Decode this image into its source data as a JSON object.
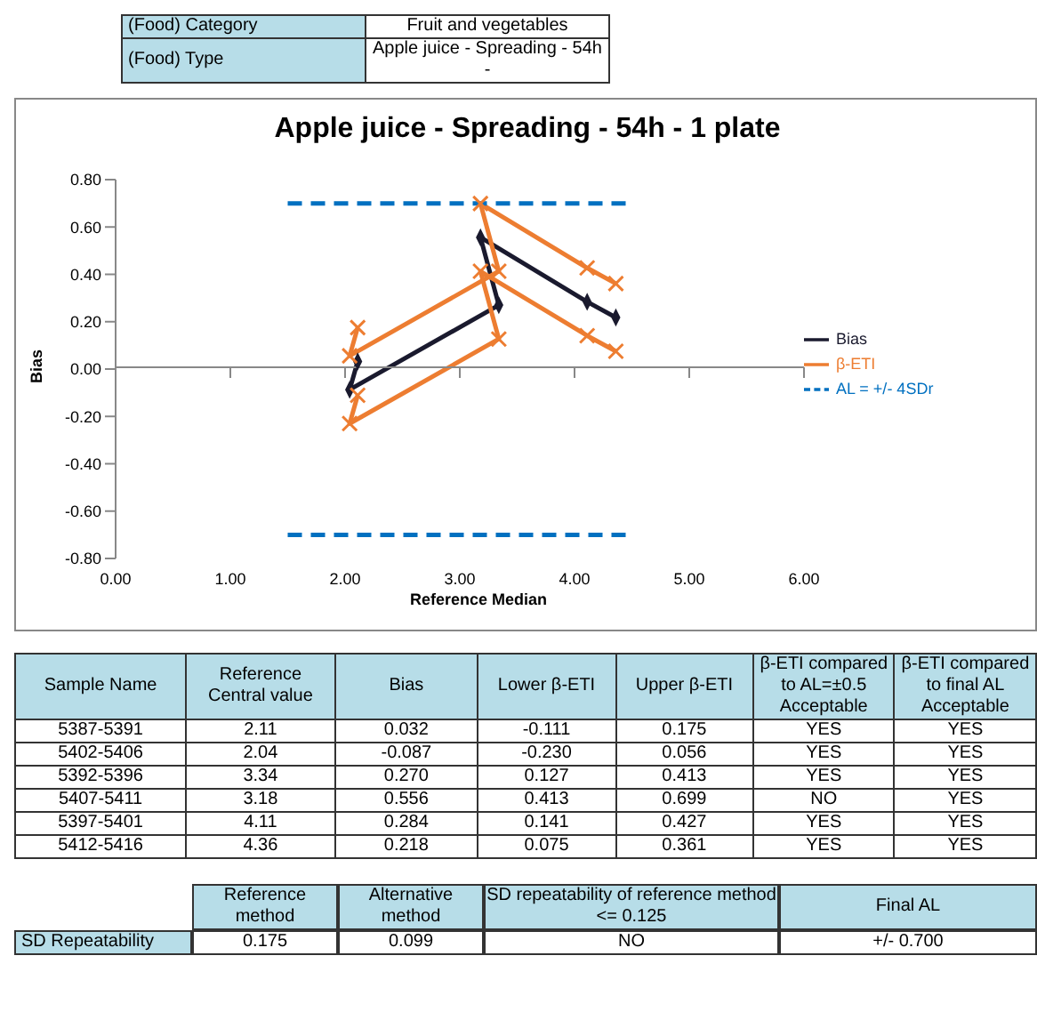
{
  "chart_data": {
    "type": "line",
    "title": "Apple juice - Spreading -  54h - 1 plate",
    "xlabel": "Reference Median",
    "ylabel": "Bias",
    "xlim": [
      0,
      6
    ],
    "xticks": [
      {
        "value": 0,
        "label": "0.00"
      },
      {
        "value": 1,
        "label": "1.00"
      },
      {
        "value": 2,
        "label": "2.00"
      },
      {
        "value": 3,
        "label": "3.00"
      },
      {
        "value": 4,
        "label": "4.00"
      },
      {
        "value": 5,
        "label": "5.00"
      },
      {
        "value": 6,
        "label": "6.00"
      }
    ],
    "ylim": [
      -0.8,
      0.8
    ],
    "yticks": [
      {
        "value": -0.8,
        "label": "-0.80"
      },
      {
        "value": -0.6,
        "label": "-0.60"
      },
      {
        "value": -0.4,
        "label": "-0.40"
      },
      {
        "value": -0.2,
        "label": "-0.20"
      },
      {
        "value": 0,
        "label": "0.00"
      },
      {
        "value": 0.2,
        "label": "0.20"
      },
      {
        "value": 0.4,
        "label": "0.40"
      },
      {
        "value": 0.6,
        "label": "0.60"
      },
      {
        "value": 0.8,
        "label": "0.80"
      }
    ],
    "legend": "right",
    "series": [
      {
        "name": "Bias",
        "color": "#1a1a2e",
        "marker": "diamond",
        "line_style": "solid",
        "x": [
          2.11,
          2.04,
          3.34,
          3.18,
          4.11,
          4.36
        ],
        "values": [
          0.032,
          -0.087,
          0.27,
          0.556,
          0.284,
          0.218
        ]
      },
      {
        "name": "β-ETI",
        "color": "#ed7d31",
        "marker": "cross",
        "line_style": "solid",
        "x": [
          2.11,
          2.04,
          3.34,
          3.18,
          4.11,
          4.36
        ],
        "values": [
          0.175,
          0.056,
          0.413,
          0.699,
          0.427,
          0.361
        ]
      },
      {
        "color": "#ed7d31",
        "marker": "cross",
        "line_style": "solid",
        "x": [
          2.11,
          2.04,
          3.34,
          3.18,
          4.11,
          4.36
        ],
        "values": [
          -0.111,
          -0.23,
          0.127,
          0.413,
          0.141,
          0.075
        ]
      },
      {
        "name": "AL = +/- 4SDr",
        "color": "#0070c0",
        "marker": "none",
        "line_style": "dashed",
        "x": [
          1.5,
          4.5
        ],
        "values": [
          0.7,
          0.7
        ]
      },
      {
        "color": "#0070c0",
        "marker": "none",
        "line_style": "dashed",
        "x": [
          1.5,
          4.5
        ],
        "values": [
          -0.7,
          -0.7
        ]
      }
    ],
    "annotations": [
      "(Food) Category",
      "Fruit and vegetables",
      "(Food) Type",
      "Apple juice - Spreading -  54h -",
      "Sample Name",
      "Reference Central value",
      "Bias",
      "Lower β-ETI",
      "Upper β-ETI",
      "β-ETI compared to AL=±0.5 Acceptable",
      "β-ETI compared to final AL Acceptable",
      "5387-5391",
      "2.11",
      "0.032",
      "-0.111",
      "0.175",
      "YES",
      "YES",
      "5402-5406",
      "2.04",
      "-0.087",
      "-0.230",
      "0.056",
      "YES",
      "YES",
      "5392-5396",
      "3.34",
      "0.270",
      "0.127",
      "0.413",
      "YES",
      "YES",
      "5407-5411",
      "3.18",
      "0.556",
      "0.413",
      "0.699",
      "NO",
      "YES",
      "5397-5401",
      "4.11",
      "0.284",
      "0.141",
      "0.427",
      "YES",
      "YES",
      "5412-5416",
      "4.36",
      "0.218",
      "0.075",
      "0.361",
      "YES",
      "YES",
      "Reference method",
      "Alternative method",
      "SD repeatability of reference method <= 0.125",
      "Final AL",
      "SD Repeatability",
      "0.175",
      "0.099",
      "NO",
      "+/- 0.700"
    ]
  }
}
